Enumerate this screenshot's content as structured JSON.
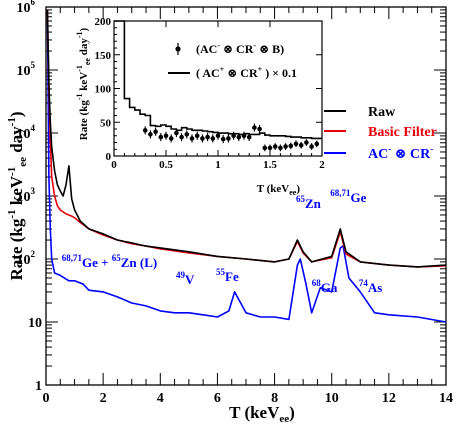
{
  "chart_data": {
    "type": "line",
    "xlabel": "T (keV",
    "xlabel_sub": "ee",
    "xlabel_end": ")",
    "ylabel": "Rate (kg",
    "ylabel_sup1": "-1",
    "ylabel_mid": " keV",
    "ylabel_sup2": "-1",
    "ylabel_sub": "ee",
    "ylabel_mid2": " day",
    "ylabel_sup3": "-1",
    "ylabel_end": ")",
    "xlim": [
      0,
      14
    ],
    "ylim": [
      1,
      1000000
    ],
    "yscale": "log",
    "x_ticks": [
      "0",
      "2",
      "4",
      "6",
      "8",
      "10",
      "12",
      "14"
    ],
    "y_ticks": [
      "1",
      "10",
      "10",
      "10",
      "10",
      "10",
      "10"
    ],
    "y_tick_exps": [
      "",
      "",
      "2",
      "3",
      "4",
      "5",
      "6"
    ],
    "legend": {
      "position": "right",
      "entries": [
        {
          "label": "Raw",
          "color": "#000000"
        },
        {
          "label": "Basic Filter",
          "color": "#e8000b"
        },
        {
          "label": "AC",
          "sup": "-",
          "mid": " ⊗ CR",
          "sup2": "-",
          "color": "#0000ff"
        }
      ]
    },
    "series": [
      {
        "name": "Raw",
        "color": "#000000",
        "x": [
          0.05,
          0.1,
          0.15,
          0.2,
          0.3,
          0.4,
          0.5,
          0.6,
          0.7,
          0.8,
          0.9,
          1.0,
          1.2,
          1.5,
          2.0,
          2.5,
          3.0,
          3.5,
          4.0,
          5.0,
          6.0,
          7.0,
          8.0,
          8.5,
          8.8,
          9.0,
          9.3,
          10.0,
          10.3,
          10.5,
          11.0,
          12.0,
          13.0,
          14.0
        ],
        "y": [
          900000,
          60000,
          15000,
          6000,
          2500,
          1500,
          1200,
          1000,
          1500,
          3000,
          900,
          600,
          400,
          300,
          250,
          200,
          180,
          160,
          150,
          130,
          110,
          100,
          90,
          100,
          200,
          130,
          90,
          110,
          300,
          130,
          90,
          80,
          75,
          80
        ]
      },
      {
        "name": "Basic Filter",
        "color": "#e8000b",
        "x": [
          0.05,
          0.1,
          0.15,
          0.2,
          0.3,
          0.4,
          0.5,
          0.6,
          0.7,
          0.8,
          0.9,
          1.0,
          1.2,
          1.5,
          2.0,
          2.5,
          3.0,
          3.5,
          4.0,
          5.0,
          6.0,
          7.0,
          8.0,
          8.5,
          8.8,
          9.0,
          9.3,
          10.0,
          10.3,
          10.5,
          11.0,
          12.0,
          13.0,
          14.0
        ],
        "y": [
          900000,
          50000,
          8000,
          2000,
          1000,
          700,
          600,
          560,
          520,
          500,
          480,
          450,
          380,
          300,
          240,
          200,
          175,
          160,
          145,
          125,
          110,
          100,
          90,
          100,
          190,
          125,
          90,
          105,
          270,
          120,
          90,
          80,
          75,
          78
        ]
      },
      {
        "name": "AC⁻ ⊗ CR⁻",
        "color": "#0000ff",
        "x": [
          0.05,
          0.1,
          0.15,
          0.2,
          0.3,
          0.5,
          0.8,
          1.0,
          1.3,
          1.5,
          2.0,
          2.5,
          3.0,
          3.5,
          4.0,
          4.5,
          5.0,
          5.5,
          6.0,
          6.4,
          6.6,
          7.0,
          7.5,
          8.0,
          8.5,
          8.8,
          8.9,
          9.1,
          9.3,
          9.6,
          10.0,
          10.3,
          10.4,
          10.6,
          11.0,
          11.5,
          12.0,
          13.0,
          14.0
        ],
        "y": [
          900000,
          2000,
          300,
          100,
          60,
          55,
          45,
          45,
          40,
          32,
          30,
          25,
          20,
          18,
          15,
          14,
          14,
          13,
          12,
          15,
          30,
          14,
          12,
          12,
          11,
          80,
          100,
          40,
          14,
          35,
          30,
          150,
          160,
          50,
          30,
          14,
          13,
          12,
          10
        ]
      }
    ],
    "annotations": [
      {
        "text": "Ge + ",
        "pre_sup": "68,71",
        "mid_sup": "65",
        "text2": "Zn (L)",
        "x": 0.55,
        "y": 75
      },
      {
        "text": "V",
        "pre_sup": "49",
        "x": 4.55,
        "y": 40
      },
      {
        "text": "Fe",
        "pre_sup": "55",
        "x": 5.95,
        "y": 45
      },
      {
        "text": "Zn",
        "pre_sup": "65",
        "x": 8.75,
        "y": 650
      },
      {
        "text": "Ga",
        "pre_sup": "68",
        "x": 9.3,
        "y": 30
      },
      {
        "text": "Ge",
        "pre_sup": "68,71",
        "x": 9.95,
        "y": 800
      },
      {
        "text": "As",
        "pre_sup": "74",
        "x": 10.95,
        "y": 30
      }
    ],
    "inset": {
      "type": "line",
      "xlim": [
        0,
        2
      ],
      "ylim": [
        0,
        200
      ],
      "xlabel": "T (keV",
      "xlabel_sub": "ee",
      "xlabel_end": ")",
      "ylabel": "Rate (kg",
      "ylabel_sup1": "-1",
      "ylabel_mid": " keV",
      "ylabel_sup2": "-1",
      "ylabel_sub": "ee",
      "ylabel_mid2": " day",
      "ylabel_sup3": "-1",
      "ylabel_end": ")",
      "x_ticks": [
        "0",
        "0.5",
        "1",
        "1.5",
        "2"
      ],
      "y_ticks": [
        "0",
        "50",
        "100",
        "150",
        "200"
      ],
      "legend": [
        {
          "label": "(AC",
          "sup": "-",
          "mid": " ⊗ CR",
          "sup2": "-",
          "end": " ⊗ B)",
          "marker": "point"
        },
        {
          "label": "( AC",
          "sup": "+",
          "mid": " ⊗ CR",
          "sup2": "+",
          "end": " ) × 0.1",
          "marker": "line"
        }
      ],
      "step_series": {
        "name": "( AC⁺ ⊗ CR⁺ ) × 0.1",
        "x": [
          0.05,
          0.1,
          0.15,
          0.2,
          0.25,
          0.3,
          0.35,
          0.4,
          0.45,
          0.5,
          0.55,
          0.6,
          0.65,
          0.7,
          0.75,
          0.8,
          0.85,
          0.9,
          0.95,
          1.0,
          1.05,
          1.1,
          1.15,
          1.2,
          1.25,
          1.3,
          1.35,
          1.4,
          1.45,
          1.5,
          1.55,
          1.6,
          1.65,
          1.7,
          1.75,
          1.8,
          1.85,
          1.9,
          1.95,
          2.0
        ],
        "y": [
          200,
          200,
          85,
          72,
          68,
          62,
          60,
          45,
          44,
          46,
          44,
          40,
          38,
          42,
          40,
          38,
          38,
          37,
          36,
          35,
          34,
          34,
          33,
          33,
          32,
          33,
          32,
          32,
          34,
          31,
          30,
          30,
          30,
          29,
          28,
          28,
          27,
          27,
          26,
          26
        ]
      },
      "points": {
        "name": "(AC⁻ ⊗ CR⁻ ⊗ B)",
        "x": [
          0.3,
          0.35,
          0.4,
          0.45,
          0.5,
          0.55,
          0.6,
          0.65,
          0.7,
          0.75,
          0.8,
          0.85,
          0.9,
          0.95,
          1.0,
          1.05,
          1.1,
          1.15,
          1.2,
          1.25,
          1.3,
          1.35,
          1.4,
          1.45,
          1.5,
          1.55,
          1.6,
          1.65,
          1.7,
          1.75,
          1.8,
          1.85,
          1.9,
          1.95
        ],
        "y": [
          38,
          32,
          36,
          28,
          30,
          26,
          34,
          28,
          32,
          26,
          30,
          26,
          28,
          26,
          30,
          25,
          26,
          30,
          28,
          30,
          28,
          42,
          40,
          12,
          12,
          14,
          12,
          14,
          15,
          18,
          16,
          20,
          14,
          18
        ],
        "err": [
          6,
          6,
          6,
          6,
          6,
          6,
          6,
          6,
          6,
          6,
          6,
          6,
          6,
          6,
          6,
          6,
          6,
          6,
          6,
          6,
          6,
          6,
          6,
          5,
          5,
          5,
          5,
          5,
          5,
          5,
          5,
          5,
          5,
          5
        ]
      }
    }
  }
}
